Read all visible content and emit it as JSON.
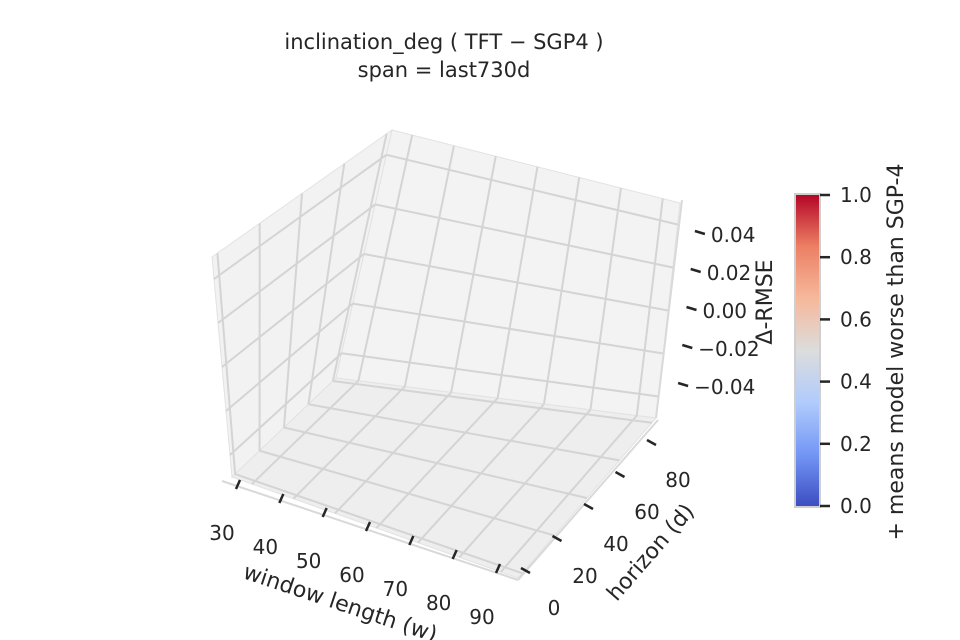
{
  "chart_data": {
    "type": "surface3d",
    "title": "inclination_deg  ( TFT − SGP4 )",
    "subtitle": "span = last730d",
    "xlabel": "window length (w)",
    "ylabel": "horizon (d)",
    "zlabel": "Δ-RMSE",
    "x_ticks": [
      "30",
      "40",
      "50",
      "60",
      "70",
      "80",
      "90"
    ],
    "y_ticks": [
      "0",
      "20",
      "40",
      "60",
      "80"
    ],
    "z_ticks": [
      "−0.04",
      "−0.02",
      "0.00",
      "0.02",
      "0.04"
    ],
    "z_tick_values": [
      -0.04,
      -0.02,
      0.0,
      0.02,
      0.04
    ],
    "zlim": [
      -0.05,
      0.05
    ],
    "grid": true,
    "series": [],
    "colorbar": {
      "label": "+ means model worse than SGP-4",
      "ticks": [
        "0.0",
        "0.2",
        "0.4",
        "0.6",
        "0.8",
        "1.0"
      ],
      "tick_values": [
        0.0,
        0.2,
        0.4,
        0.6,
        0.8,
        1.0
      ],
      "colormap": "coolwarm",
      "colors": [
        "#3b4cc0",
        "#7396f5",
        "#b0cbfc",
        "#dcdddd",
        "#f6b89b",
        "#ec7f63",
        "#b40426"
      ]
    },
    "colors": {
      "pane": "#f2f2f2",
      "grid": "#d4d4d4",
      "frame": "#d9d9d9",
      "text": "#262626"
    }
  }
}
